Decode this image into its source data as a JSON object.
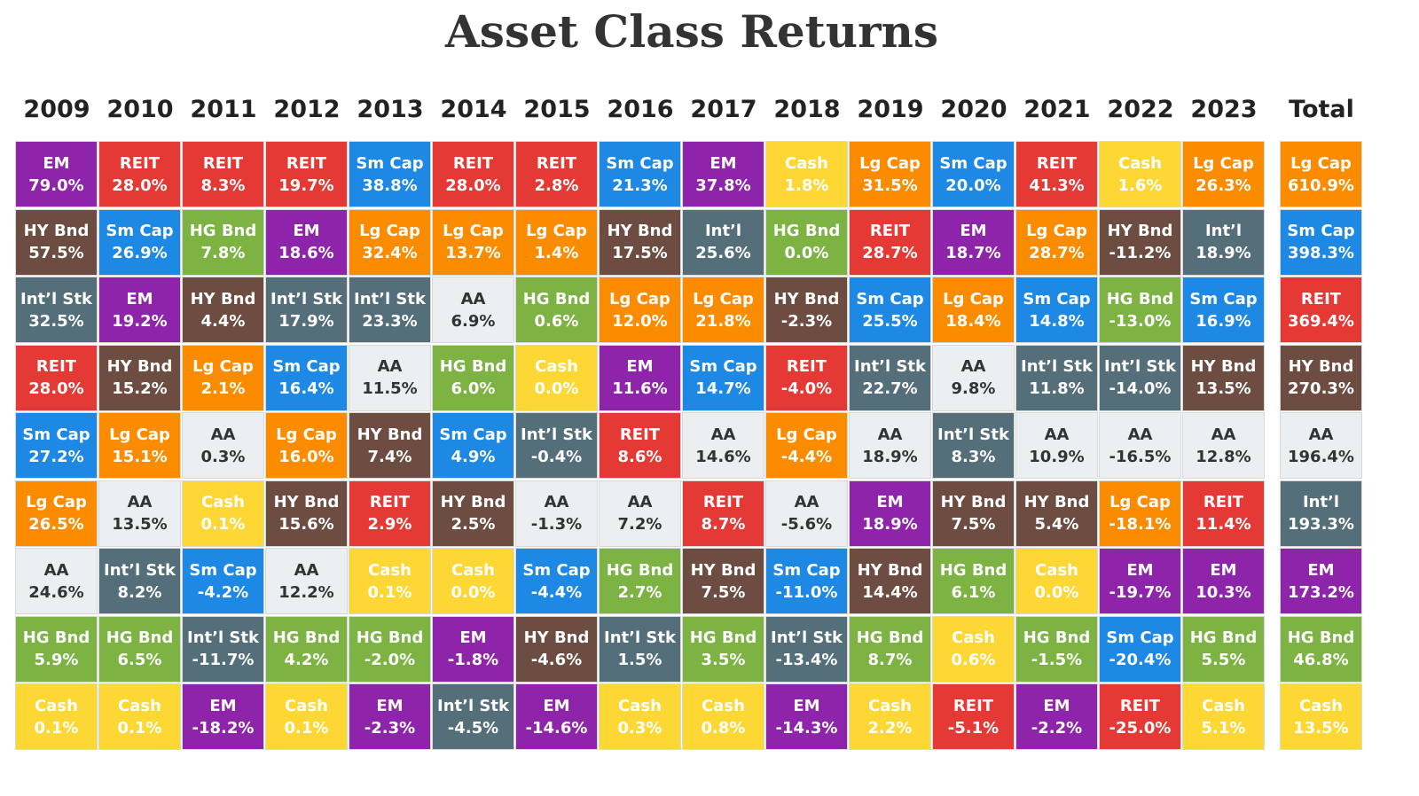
{
  "title": "Asset Class Returns",
  "colors": {
    "EM": "#8e24aa",
    "REIT": "#e53935",
    "Sm Cap": "#1e88e5",
    "HY Bnd": "#6d4c41",
    "Int'l Stk": "#546e7a",
    "HG Bnd": "#7cb342",
    "Lg Cap": "#fb8c00",
    "AA": "#eceff1",
    "Cash": "#fdd835",
    "Int'l": "#546e7a"
  },
  "chart_data": {
    "type": "table",
    "columns": [
      {
        "year": "2009",
        "cells": [
          {
            "asset": "EM",
            "value": "79.0%"
          },
          {
            "asset": "HY Bnd",
            "value": "57.5%"
          },
          {
            "asset": "Int'l Stk",
            "value": "32.5%"
          },
          {
            "asset": "REIT",
            "value": "28.0%"
          },
          {
            "asset": "Sm Cap",
            "value": "27.2%"
          },
          {
            "asset": "Lg Cap",
            "value": "26.5%"
          },
          {
            "asset": "AA",
            "value": "24.6%"
          },
          {
            "asset": "HG Bnd",
            "value": "5.9%"
          },
          {
            "asset": "Cash",
            "value": "0.1%"
          }
        ]
      },
      {
        "year": "2010",
        "cells": [
          {
            "asset": "REIT",
            "value": "28.0%"
          },
          {
            "asset": "Sm Cap",
            "value": "26.9%"
          },
          {
            "asset": "EM",
            "value": "19.2%"
          },
          {
            "asset": "HY Bnd",
            "value": "15.2%"
          },
          {
            "asset": "Lg Cap",
            "value": "15.1%"
          },
          {
            "asset": "AA",
            "value": "13.5%"
          },
          {
            "asset": "Int'l Stk",
            "value": "8.2%"
          },
          {
            "asset": "HG Bnd",
            "value": "6.5%"
          },
          {
            "asset": "Cash",
            "value": "0.1%"
          }
        ]
      },
      {
        "year": "2011",
        "cells": [
          {
            "asset": "REIT",
            "value": "8.3%"
          },
          {
            "asset": "HG Bnd",
            "value": "7.8%"
          },
          {
            "asset": "HY Bnd",
            "value": "4.4%"
          },
          {
            "asset": "Lg Cap",
            "value": "2.1%"
          },
          {
            "asset": "AA",
            "value": "0.3%"
          },
          {
            "asset": "Cash",
            "value": "0.1%"
          },
          {
            "asset": "Sm Cap",
            "value": "-4.2%"
          },
          {
            "asset": "Int'l Stk",
            "value": "-11.7%"
          },
          {
            "asset": "EM",
            "value": "-18.2%"
          }
        ]
      },
      {
        "year": "2012",
        "cells": [
          {
            "asset": "REIT",
            "value": "19.7%"
          },
          {
            "asset": "EM",
            "value": "18.6%"
          },
          {
            "asset": "Int'l Stk",
            "value": "17.9%"
          },
          {
            "asset": "Sm Cap",
            "value": "16.4%"
          },
          {
            "asset": "Lg Cap",
            "value": "16.0%"
          },
          {
            "asset": "HY Bnd",
            "value": "15.6%"
          },
          {
            "asset": "AA",
            "value": "12.2%"
          },
          {
            "asset": "HG Bnd",
            "value": "4.2%"
          },
          {
            "asset": "Cash",
            "value": "0.1%"
          }
        ]
      },
      {
        "year": "2013",
        "cells": [
          {
            "asset": "Sm Cap",
            "value": "38.8%"
          },
          {
            "asset": "Lg Cap",
            "value": "32.4%"
          },
          {
            "asset": "Int'l Stk",
            "value": "23.3%"
          },
          {
            "asset": "AA",
            "value": "11.5%"
          },
          {
            "asset": "HY Bnd",
            "value": "7.4%"
          },
          {
            "asset": "REIT",
            "value": "2.9%"
          },
          {
            "asset": "Cash",
            "value": "0.1%"
          },
          {
            "asset": "HG Bnd",
            "value": "-2.0%"
          },
          {
            "asset": "EM",
            "value": "-2.3%"
          }
        ]
      },
      {
        "year": "2014",
        "cells": [
          {
            "asset": "REIT",
            "value": "28.0%"
          },
          {
            "asset": "Lg Cap",
            "value": "13.7%"
          },
          {
            "asset": "AA",
            "value": "6.9%"
          },
          {
            "asset": "HG Bnd",
            "value": "6.0%"
          },
          {
            "asset": "Sm Cap",
            "value": "4.9%"
          },
          {
            "asset": "HY Bnd",
            "value": "2.5%"
          },
          {
            "asset": "Cash",
            "value": "0.0%"
          },
          {
            "asset": "EM",
            "value": "-1.8%"
          },
          {
            "asset": "Int'l Stk",
            "value": "-4.5%"
          }
        ]
      },
      {
        "year": "2015",
        "cells": [
          {
            "asset": "REIT",
            "value": "2.8%"
          },
          {
            "asset": "Lg Cap",
            "value": "1.4%"
          },
          {
            "asset": "HG Bnd",
            "value": "0.6%"
          },
          {
            "asset": "Cash",
            "value": "0.0%"
          },
          {
            "asset": "Int'l Stk",
            "value": "-0.4%"
          },
          {
            "asset": "AA",
            "value": "-1.3%"
          },
          {
            "asset": "Sm Cap",
            "value": "-4.4%"
          },
          {
            "asset": "HY Bnd",
            "value": "-4.6%"
          },
          {
            "asset": "EM",
            "value": "-14.6%"
          }
        ]
      },
      {
        "year": "2016",
        "cells": [
          {
            "asset": "Sm Cap",
            "value": "21.3%"
          },
          {
            "asset": "HY Bnd",
            "value": "17.5%"
          },
          {
            "asset": "Lg Cap",
            "value": "12.0%"
          },
          {
            "asset": "EM",
            "value": "11.6%"
          },
          {
            "asset": "REIT",
            "value": "8.6%"
          },
          {
            "asset": "AA",
            "value": "7.2%"
          },
          {
            "asset": "HG Bnd",
            "value": "2.7%"
          },
          {
            "asset": "Int'l Stk",
            "value": "1.5%"
          },
          {
            "asset": "Cash",
            "value": "0.3%"
          }
        ]
      },
      {
        "year": "2017",
        "cells": [
          {
            "asset": "EM",
            "value": "37.8%"
          },
          {
            "asset": "Int'l",
            "value": "25.6%"
          },
          {
            "asset": "Lg Cap",
            "value": "21.8%"
          },
          {
            "asset": "Sm Cap",
            "value": "14.7%"
          },
          {
            "asset": "AA",
            "value": "14.6%"
          },
          {
            "asset": "REIT",
            "value": "8.7%"
          },
          {
            "asset": "HY Bnd",
            "value": "7.5%"
          },
          {
            "asset": "HG Bnd",
            "value": "3.5%"
          },
          {
            "asset": "Cash",
            "value": "0.8%"
          }
        ]
      },
      {
        "year": "2018",
        "cells": [
          {
            "asset": "Cash",
            "value": "1.8%"
          },
          {
            "asset": "HG Bnd",
            "value": "0.0%"
          },
          {
            "asset": "HY Bnd",
            "value": "-2.3%"
          },
          {
            "asset": "REIT",
            "value": "-4.0%"
          },
          {
            "asset": "Lg Cap",
            "value": "-4.4%"
          },
          {
            "asset": "AA",
            "value": "-5.6%"
          },
          {
            "asset": "Sm Cap",
            "value": "-11.0%"
          },
          {
            "asset": "Int'l Stk",
            "value": "-13.4%"
          },
          {
            "asset": "EM",
            "value": "-14.3%"
          }
        ]
      },
      {
        "year": "2019",
        "cells": [
          {
            "asset": "Lg Cap",
            "value": "31.5%"
          },
          {
            "asset": "REIT",
            "value": "28.7%"
          },
          {
            "asset": "Sm Cap",
            "value": "25.5%"
          },
          {
            "asset": "Int'l Stk",
            "value": "22.7%"
          },
          {
            "asset": "AA",
            "value": "18.9%"
          },
          {
            "asset": "EM",
            "value": "18.9%"
          },
          {
            "asset": "HY Bnd",
            "value": "14.4%"
          },
          {
            "asset": "HG Bnd",
            "value": "8.7%"
          },
          {
            "asset": "Cash",
            "value": "2.2%"
          }
        ]
      },
      {
        "year": "2020",
        "cells": [
          {
            "asset": "Sm Cap",
            "value": "20.0%"
          },
          {
            "asset": "EM",
            "value": "18.7%"
          },
          {
            "asset": "Lg Cap",
            "value": "18.4%"
          },
          {
            "asset": "AA",
            "value": "9.8%"
          },
          {
            "asset": "Int'l Stk",
            "value": "8.3%"
          },
          {
            "asset": "HY Bnd",
            "value": "7.5%"
          },
          {
            "asset": "HG Bnd",
            "value": "6.1%"
          },
          {
            "asset": "Cash",
            "value": "0.6%"
          },
          {
            "asset": "REIT",
            "value": "-5.1%"
          }
        ]
      },
      {
        "year": "2021",
        "cells": [
          {
            "asset": "REIT",
            "value": "41.3%"
          },
          {
            "asset": "Lg Cap",
            "value": "28.7%"
          },
          {
            "asset": "Sm Cap",
            "value": "14.8%"
          },
          {
            "asset": "Int'l Stk",
            "value": "11.8%"
          },
          {
            "asset": "AA",
            "value": "10.9%"
          },
          {
            "asset": "HY Bnd",
            "value": "5.4%"
          },
          {
            "asset": "Cash",
            "value": "0.0%"
          },
          {
            "asset": "HG Bnd",
            "value": "-1.5%"
          },
          {
            "asset": "EM",
            "value": "-2.2%"
          }
        ]
      },
      {
        "year": "2022",
        "cells": [
          {
            "asset": "Cash",
            "value": "1.6%"
          },
          {
            "asset": "HY Bnd",
            "value": "-11.2%"
          },
          {
            "asset": "HG Bnd",
            "value": "-13.0%"
          },
          {
            "asset": "Int'l Stk",
            "value": "-14.0%"
          },
          {
            "asset": "AA",
            "value": "-16.5%"
          },
          {
            "asset": "Lg Cap",
            "value": "-18.1%"
          },
          {
            "asset": "EM",
            "value": "-19.7%"
          },
          {
            "asset": "Sm Cap",
            "value": "-20.4%"
          },
          {
            "asset": "REIT",
            "value": "-25.0%"
          }
        ]
      },
      {
        "year": "2023",
        "cells": [
          {
            "asset": "Lg Cap",
            "value": "26.3%"
          },
          {
            "asset": "Int'l",
            "value": "18.9%"
          },
          {
            "asset": "Sm Cap",
            "value": "16.9%"
          },
          {
            "asset": "HY Bnd",
            "value": "13.5%"
          },
          {
            "asset": "AA",
            "value": "12.8%"
          },
          {
            "asset": "REIT",
            "value": "11.4%"
          },
          {
            "asset": "EM",
            "value": "10.3%"
          },
          {
            "asset": "HG Bnd",
            "value": "5.5%"
          },
          {
            "asset": "Cash",
            "value": "5.1%"
          }
        ]
      },
      {
        "year": "Total",
        "cells": [
          {
            "asset": "Lg Cap",
            "value": "610.9%"
          },
          {
            "asset": "Sm Cap",
            "value": "398.3%"
          },
          {
            "asset": "REIT",
            "value": "369.4%"
          },
          {
            "asset": "HY Bnd",
            "value": "270.3%"
          },
          {
            "asset": "AA",
            "value": "196.4%"
          },
          {
            "asset": "Int'l",
            "value": "193.3%"
          },
          {
            "asset": "EM",
            "value": "173.2%"
          },
          {
            "asset": "HG Bnd",
            "value": "46.8%"
          },
          {
            "asset": "Cash",
            "value": "13.5%"
          }
        ]
      }
    ]
  }
}
